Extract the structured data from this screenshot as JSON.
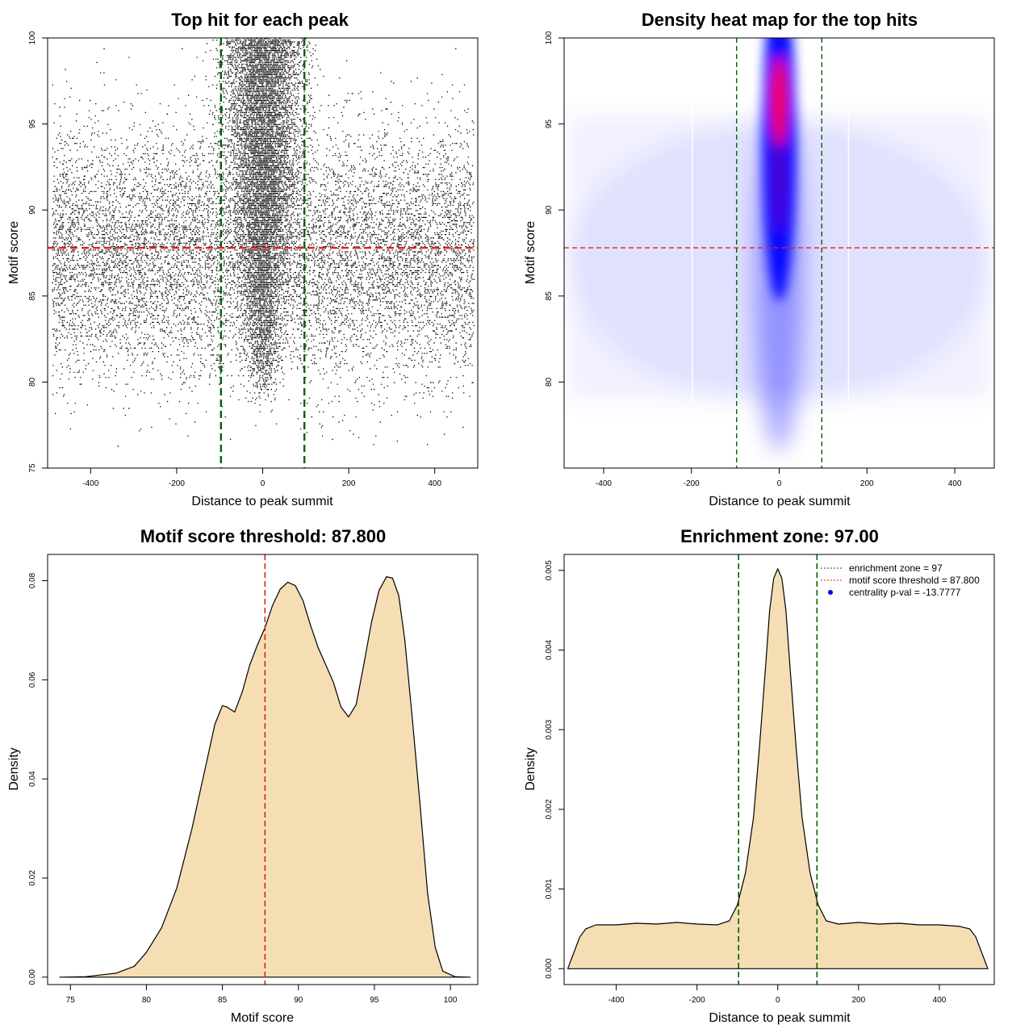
{
  "chart_data": [
    {
      "type": "scatter",
      "title": "Top hit for each peak",
      "xlabel": "Distance to peak summit",
      "ylabel": "Motif score",
      "xlim": [
        -500,
        500
      ],
      "ylim": [
        75,
        100
      ],
      "xticks": [
        "-400",
        "-200",
        "0",
        "200",
        "400"
      ],
      "yticks": [
        "75",
        "80",
        "85",
        "90",
        "95",
        "100"
      ],
      "background_points": {
        "x_range": [
          -490,
          490
        ],
        "y_range": [
          76,
          99.9
        ],
        "center_y": 87.5
      },
      "central_cluster": {
        "x_center": 0,
        "x_spread": 45,
        "y_range": [
          79,
          100
        ],
        "dense_y_range": [
          88,
          99
        ]
      },
      "lines": [
        {
          "orientation": "vertical",
          "value": -97,
          "color": "#006400",
          "style": "dashed"
        },
        {
          "orientation": "vertical",
          "value": 97,
          "color": "#006400",
          "style": "dashed"
        },
        {
          "orientation": "horizontal",
          "value": 87.8,
          "color": "#dd2222",
          "style": "dashed"
        }
      ]
    },
    {
      "type": "heatmap",
      "title": "Density heat map for the top hits",
      "xlabel": "Distance to peak summit",
      "ylabel": "Motif score",
      "xlim": [
        -490,
        490
      ],
      "ylim": [
        75,
        100
      ],
      "xticks": [
        "-400",
        "-200",
        "0",
        "200",
        "400"
      ],
      "yticks": [
        "80",
        "85",
        "90",
        "95",
        "100"
      ],
      "hotspot": {
        "x": 0,
        "y": 96.3
      },
      "colors": [
        "#ffffff",
        "#0000ff",
        "#ff0000"
      ],
      "lines": [
        {
          "orientation": "vertical",
          "value": -97,
          "color": "#006400",
          "style": "dashed"
        },
        {
          "orientation": "vertical",
          "value": 97,
          "color": "#006400",
          "style": "dashed"
        },
        {
          "orientation": "horizontal",
          "value": 87.8,
          "color": "#dd2222",
          "style": "dashed"
        }
      ]
    },
    {
      "type": "area",
      "title": "Motif score threshold: 87.800",
      "xlabel": "Motif score",
      "ylabel": "Density",
      "xlim": [
        73.5,
        101.8
      ],
      "ylim": [
        -0.0015,
        0.0853
      ],
      "xticks": [
        "75",
        "80",
        "85",
        "90",
        "95",
        "100"
      ],
      "yticks": [
        "0.00",
        "0.02",
        "0.04",
        "0.06",
        "0.08"
      ],
      "fill": "#f5deb3",
      "x": [
        74.3,
        76,
        78,
        79.2,
        80,
        81,
        82,
        83,
        83.5,
        84,
        84.5,
        85,
        85.3,
        85.8,
        86.3,
        86.8,
        87.3,
        87.8,
        88.3,
        88.8,
        89.3,
        89.8,
        90.3,
        90.8,
        91.3,
        91.8,
        92.3,
        92.8,
        93.3,
        93.8,
        94.3,
        94.8,
        95.3,
        95.8,
        96.2,
        96.6,
        97,
        97.5,
        98,
        98.5,
        99,
        99.5,
        100.3,
        101.3
      ],
      "y": [
        0,
        0.0001,
        0.0008,
        0.0022,
        0.005,
        0.01,
        0.018,
        0.03,
        0.037,
        0.044,
        0.051,
        0.0548,
        0.0545,
        0.0535,
        0.0575,
        0.063,
        0.067,
        0.0705,
        0.075,
        0.0783,
        0.0797,
        0.079,
        0.076,
        0.071,
        0.0665,
        0.063,
        0.0595,
        0.0545,
        0.0525,
        0.055,
        0.063,
        0.0715,
        0.078,
        0.0808,
        0.0805,
        0.077,
        0.068,
        0.052,
        0.035,
        0.017,
        0.006,
        0.0012,
        0.0001,
        0
      ],
      "lines": [
        {
          "orientation": "vertical",
          "value": 87.8,
          "color": "#dd2222",
          "style": "dashed"
        }
      ]
    },
    {
      "type": "area",
      "title": "Enrichment zone: 97.00",
      "xlabel": "Distance to peak summit",
      "ylabel": "Density",
      "xlim": [
        -529,
        536
      ],
      "ylim": [
        -0.0002,
        0.0052
      ],
      "xticks": [
        "-400",
        "-200",
        "0",
        "200",
        "400"
      ],
      "yticks": [
        "0.000",
        "0.001",
        "0.002",
        "0.003",
        "0.004",
        "0.005"
      ],
      "fill": "#f5deb3",
      "x": [
        -520,
        -505,
        -490,
        -475,
        -450,
        -400,
        -350,
        -300,
        -250,
        -200,
        -150,
        -120,
        -100,
        -80,
        -60,
        -45,
        -30,
        -20,
        -10,
        0,
        10,
        20,
        30,
        45,
        60,
        80,
        100,
        120,
        150,
        200,
        250,
        300,
        350,
        400,
        450,
        475,
        490,
        505,
        520
      ],
      "y": [
        0,
        0.0002,
        0.0004,
        0.0005,
        0.00055,
        0.00055,
        0.00057,
        0.00056,
        0.00058,
        0.00056,
        0.00055,
        0.0006,
        0.0008,
        0.0012,
        0.0019,
        0.0028,
        0.0038,
        0.0045,
        0.0049,
        0.00502,
        0.0049,
        0.0045,
        0.0038,
        0.0028,
        0.0019,
        0.0012,
        0.0008,
        0.0006,
        0.00056,
        0.00058,
        0.00056,
        0.00057,
        0.00055,
        0.00055,
        0.00053,
        0.0005,
        0.0004,
        0.0002,
        0
      ],
      "lines": [
        {
          "orientation": "vertical",
          "value": -97,
          "color": "#006400",
          "style": "dashed"
        },
        {
          "orientation": "vertical",
          "value": 97,
          "color": "#006400",
          "style": "dashed"
        }
      ],
      "legend": {
        "placement": "top-right",
        "entries": [
          {
            "label": "enrichment zone = 97",
            "color": "#006400",
            "symbol": "dotted-line"
          },
          {
            "label": "motif score threshold = 87.800",
            "color": "#dd2222",
            "symbol": "dotted-line"
          },
          {
            "label": "centrality p-val = -13.7777",
            "color": "#0000ff",
            "symbol": "dot"
          }
        ]
      }
    }
  ]
}
